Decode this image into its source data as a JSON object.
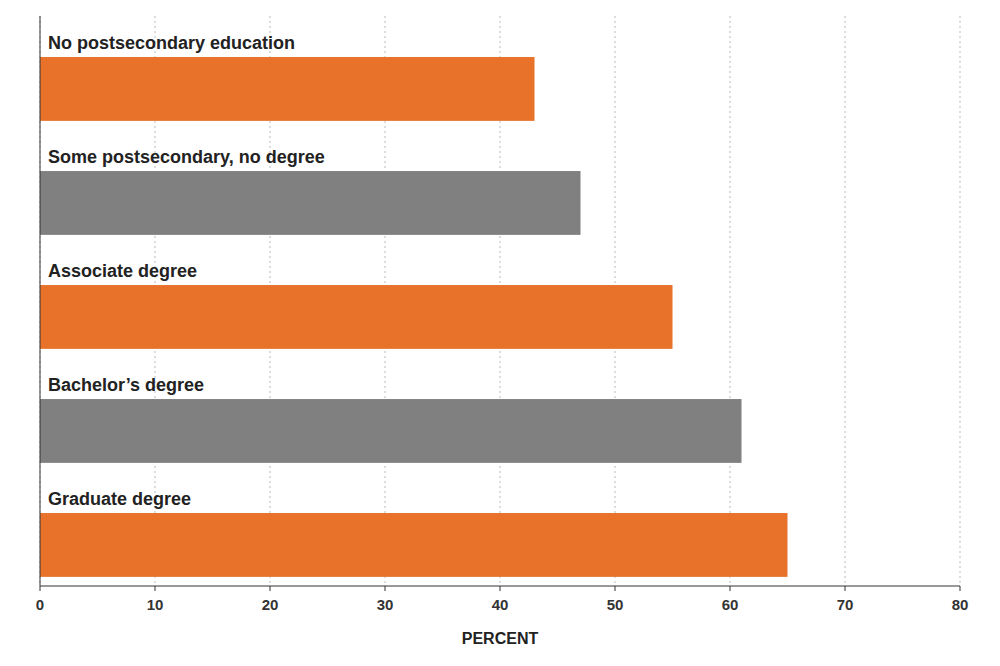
{
  "chart_data": {
    "type": "bar",
    "orientation": "horizontal",
    "categories": [
      "No postsecondary education",
      "Some postsecondary, no degree",
      "Associate degree",
      "Bachelor’s degree",
      "Graduate degree"
    ],
    "values": [
      43,
      47,
      55,
      61,
      65
    ],
    "colors": [
      "#E8722A",
      "#808080",
      "#E8722A",
      "#808080",
      "#E8722A"
    ],
    "xlabel": "PERCENT",
    "xlim": [
      0,
      80
    ],
    "xticks": [
      0,
      10,
      20,
      30,
      40,
      50,
      60,
      70,
      80
    ],
    "grid": true
  }
}
